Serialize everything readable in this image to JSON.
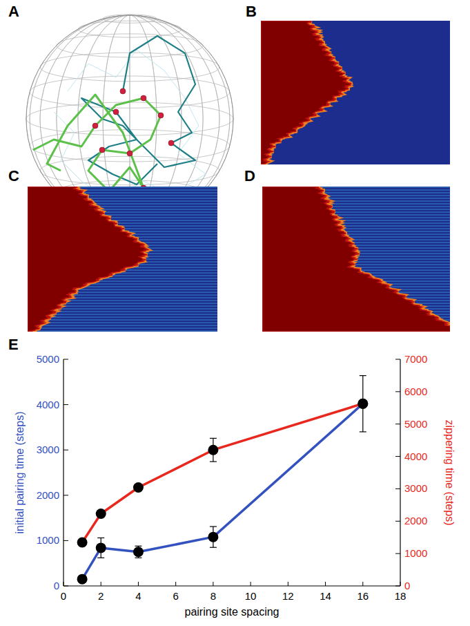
{
  "panel_labels": [
    "A",
    "B",
    "C",
    "D",
    "E"
  ],
  "chart_data": {
    "type": "line",
    "xlabel": "pairing site spacing",
    "ylabel": "initial pairing time (steps)",
    "y2label": "zippering time (steps)",
    "xlim": [
      0,
      18
    ],
    "xticks": [
      0,
      2,
      4,
      6,
      8,
      10,
      12,
      14,
      16,
      18
    ],
    "ylim": [
      0,
      5000
    ],
    "yticks": [
      0,
      1000,
      2000,
      3000,
      4000,
      5000
    ],
    "y2lim": [
      0,
      7000
    ],
    "y2ticks": [
      0,
      1000,
      2000,
      3000,
      4000,
      5000,
      6000,
      7000
    ],
    "grid": false,
    "series": [
      {
        "color": "#3451c0",
        "marker": "circle",
        "x": [
          1,
          2,
          4,
          8,
          16
        ],
        "values": [
          150,
          840,
          750,
          1080,
          4020
        ],
        "errors": [
          40,
          220,
          130,
          230,
          620
        ]
      },
      {
        "color": "#e8281e",
        "marker": "circle",
        "axis": "y2",
        "x": [
          1,
          2,
          4,
          8,
          16
        ],
        "values": [
          1345,
          2230,
          3040,
          4200,
          5630
        ],
        "errors": [
          60,
          80,
          80,
          360,
          80
        ]
      }
    ]
  }
}
